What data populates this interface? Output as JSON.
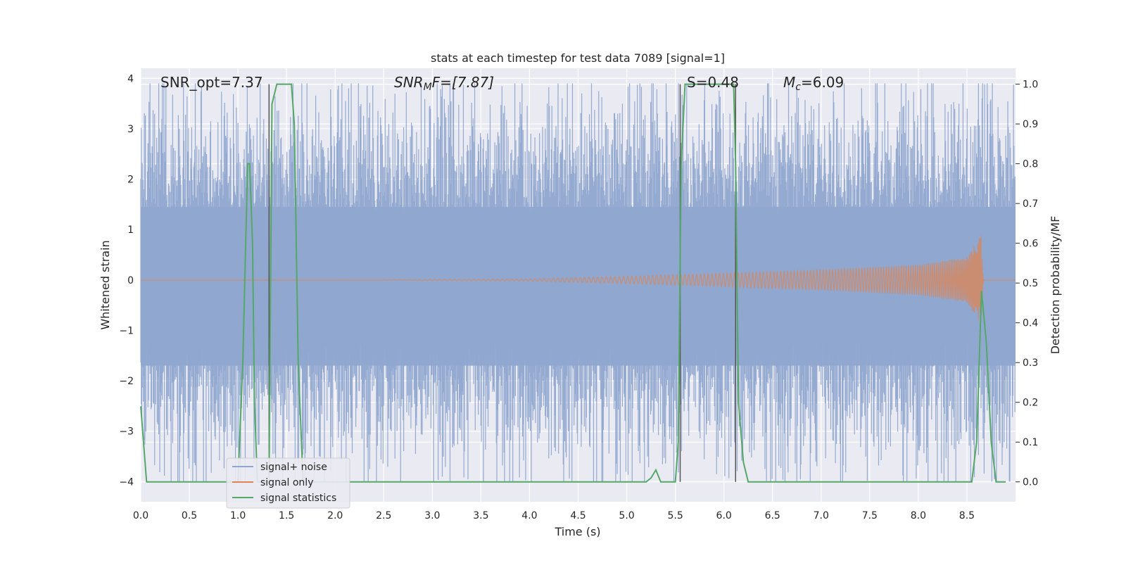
{
  "chart_data": {
    "type": "line",
    "title": "stats at each timestep for test data 7089 [signal=1]",
    "xlabel": "Time (s)",
    "ylabel_left": "Whitened strain",
    "ylabel_right": "Detection probability/MF",
    "xlim": [
      0,
      9.0
    ],
    "ylim_left": [
      -4.4,
      4.2
    ],
    "ylim_right": [
      -0.05,
      1.04
    ],
    "x_ticks": [
      "0.0",
      "0.5",
      "1.0",
      "1.5",
      "2.0",
      "2.5",
      "3.0",
      "3.5",
      "4.0",
      "4.5",
      "5.0",
      "5.5",
      "6.0",
      "6.5",
      "7.0",
      "7.5",
      "8.0",
      "8.5"
    ],
    "y_left_ticks": [
      "4",
      "3",
      "2",
      "1",
      "0",
      "−1",
      "−2",
      "−3",
      "−4"
    ],
    "y_right_ticks": [
      "1.0",
      "0.9",
      "0.8",
      "0.7",
      "0.6",
      "0.5",
      "0.4",
      "0.3",
      "0.2",
      "0.1",
      "0.0"
    ],
    "grid": true,
    "legend_position": "lower-left",
    "colors": {
      "plot_bg": "#eaeaf2",
      "noise": "#8fa6cf",
      "signal_only": "#dd8452",
      "statistics": "#55a868",
      "vline": "#555555"
    },
    "series": [
      {
        "name": "signal+ noise",
        "kind": "noise_band",
        "approx_envelope": [
          -2.0,
          2.3
        ]
      },
      {
        "name": "signal only",
        "kind": "chirp",
        "amplitude_at": {
          "x": [
            4.0,
            5.5,
            7.0,
            8.0,
            8.5,
            8.65,
            8.67
          ],
          "a": [
            0.02,
            0.1,
            0.2,
            0.3,
            0.45,
            0.9,
            0
          ]
        }
      },
      {
        "name": "signal statistics",
        "axis": "right",
        "x": [
          0.0,
          0.06,
          0.12,
          0.2,
          0.4,
          0.5,
          0.9,
          1.0,
          1.05,
          1.1,
          1.12,
          1.15,
          1.17,
          1.2,
          1.25,
          1.28,
          1.32,
          1.35,
          1.4,
          1.55,
          1.58,
          1.62,
          1.67,
          1.7,
          5.2,
          5.25,
          5.3,
          5.35,
          5.4,
          5.5,
          5.53,
          5.56,
          5.6,
          5.65,
          6.1,
          6.12,
          6.15,
          6.2,
          6.25,
          8.55,
          8.6,
          8.65,
          8.7,
          8.75,
          8.8,
          8.85,
          8.9
        ],
        "y": [
          0.19,
          0.0,
          0.0,
          0.0,
          0.0,
          0.0,
          0.0,
          0.0,
          0.3,
          0.8,
          0.8,
          0.6,
          0.2,
          0.0,
          0.0,
          0.0,
          0.0,
          0.95,
          1.0,
          1.0,
          0.9,
          0.3,
          0.0,
          0.0,
          0.0,
          0.01,
          0.03,
          0.0,
          0.0,
          0.0,
          0.1,
          0.8,
          1.0,
          1.0,
          1.0,
          0.8,
          0.2,
          0.05,
          0.0,
          0.0,
          0.1,
          0.48,
          0.35,
          0.1,
          0.0,
          0.0,
          0.0
        ]
      }
    ],
    "vlines": [
      1.32,
      5.55,
      6.12
    ],
    "annotations": [
      {
        "text": "SNR_opt=7.37",
        "x": 0.2,
        "y": 3.8
      },
      {
        "text_main": "SNR",
        "text_sub": "M",
        "text_rest": "F=[7.87]",
        "x": 2.6,
        "y": 3.8
      },
      {
        "text": "S=0.48",
        "x": 5.65,
        "y": 3.8
      },
      {
        "text_main": "M",
        "text_sub": "c",
        "text_rest": "=6.09",
        "x": 6.65,
        "y": 3.8
      }
    ]
  }
}
